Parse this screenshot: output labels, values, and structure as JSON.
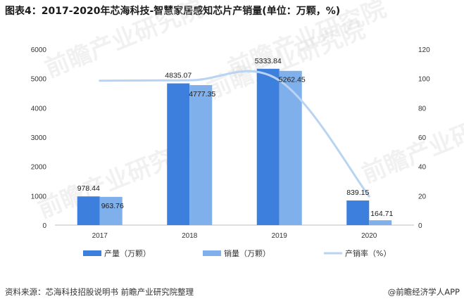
{
  "title": "图表4：2017-2020年芯海科技-智慧家居感知芯片产销量(单位：万颗，%)",
  "source": "资料来源：芯海科技招股说明书 前瞻产业研究院整理",
  "brand": "@前瞻经济学人APP",
  "watermark": "前瞻产业研究院",
  "colors": {
    "production": "#3d7fdc",
    "sales": "#7fb0ec",
    "rate": "#b9d3f3"
  },
  "chart_data": {
    "type": "bar",
    "categories": [
      "2017",
      "2018",
      "2019",
      "2020"
    ],
    "series": [
      {
        "name": "产量（万颗）",
        "type": "bar",
        "axis": "left",
        "values": [
          978.44,
          4835.07,
          5333.84,
          839.15
        ],
        "labels": [
          "978.44",
          "4835.07",
          "5333.84",
          "839.15"
        ]
      },
      {
        "name": "销量（万颗）",
        "type": "bar",
        "axis": "left",
        "values": [
          963.76,
          4777.35,
          5262.45,
          164.71
        ],
        "labels": [
          "963.76",
          "4777.35",
          "5262.45",
          "164.71"
        ]
      },
      {
        "name": "产销率（%）",
        "type": "line",
        "axis": "right",
        "values": [
          98.5,
          98.8,
          98.7,
          19.6
        ]
      }
    ],
    "y_left": {
      "min": 0,
      "max": 6000,
      "ticks": [
        "0",
        "1000",
        "2000",
        "3000",
        "4000",
        "5000",
        "6000"
      ]
    },
    "y_right": {
      "min": 0,
      "max": 120,
      "ticks": [
        "0",
        "20",
        "40",
        "60",
        "80",
        "100",
        "120"
      ]
    },
    "legend_position": "bottom",
    "grid": false
  }
}
